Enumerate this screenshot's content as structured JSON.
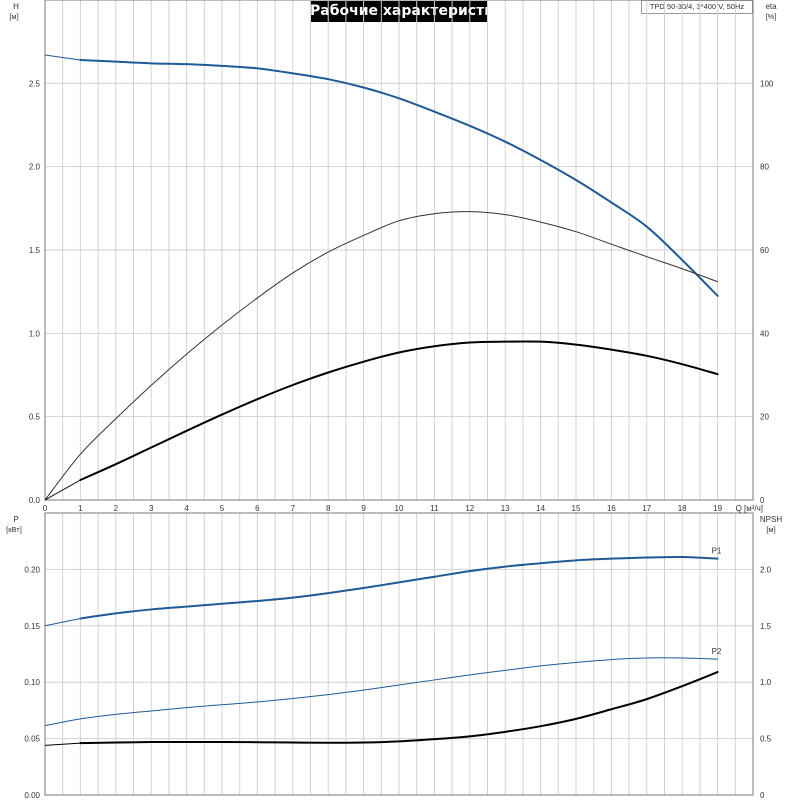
{
  "header": {
    "title": "Рабочие характеристики",
    "model": "TPD 50-30/4, 3*400 V, 50Hz"
  },
  "chart_data": [
    {
      "type": "line",
      "panel": "top",
      "left_axis": {
        "name": "H",
        "unit": "[м]",
        "range": [
          0,
          3.0
        ],
        "ticks": [
          0.0,
          0.5,
          1.0,
          1.5,
          2.0,
          2.5
        ],
        "tick_labels": [
          "0.0",
          "0.5",
          "1.0",
          "1.5",
          "2.0",
          "2.5"
        ]
      },
      "right_axis": {
        "name": "eta",
        "unit": "[%]",
        "range": [
          0,
          120
        ],
        "ticks": [
          0,
          20,
          40,
          60,
          80,
          100
        ],
        "tick_labels": [
          "0",
          "20",
          "40",
          "60",
          "80",
          "100"
        ]
      },
      "x_axis": {
        "name": "Q",
        "unit": "[м³/ч]",
        "range": [
          0,
          20
        ],
        "ticks": [
          0,
          1,
          2,
          3,
          4,
          5,
          6,
          7,
          8,
          9,
          10,
          11,
          12,
          13,
          14,
          15,
          16,
          17,
          18,
          19
        ],
        "tick_labels": [
          "0",
          "1",
          "2",
          "3",
          "4",
          "5",
          "6",
          "7",
          "8",
          "9",
          "10",
          "11",
          "12",
          "13",
          "14",
          "15",
          "16",
          "17",
          "18",
          "19"
        ]
      },
      "grid": true,
      "series": [
        {
          "id": "H",
          "axis": "left",
          "color": "#1f5a96",
          "width": 2.0,
          "thin": {
            "x": [
              0,
              1
            ],
            "y": [
              2.67,
              2.64
            ]
          },
          "x": [
            1,
            2,
            3,
            4,
            5,
            6,
            7,
            8,
            9,
            10,
            11,
            12,
            13,
            14,
            15,
            16,
            17,
            18,
            19
          ],
          "y": [
            2.64,
            2.63,
            2.62,
            2.615,
            2.605,
            2.59,
            2.56,
            2.525,
            2.475,
            2.41,
            2.33,
            2.245,
            2.15,
            2.04,
            1.92,
            1.785,
            1.64,
            1.44,
            1.225
          ]
        },
        {
          "id": "eta-outer",
          "axis": "right",
          "color": "#333333",
          "width": 1.0,
          "x": [
            0,
            1,
            2,
            3,
            4,
            5,
            6,
            7,
            8,
            9,
            10,
            11,
            12,
            13,
            14,
            15,
            16,
            17,
            18,
            19
          ],
          "y": [
            0,
            11,
            19.5,
            27.5,
            35,
            42,
            48.5,
            54.5,
            59.5,
            63.5,
            67,
            68.7,
            69.2,
            68.5,
            66.7,
            64.4,
            61.4,
            58.4,
            55.5,
            52.4
          ]
        },
        {
          "id": "eta",
          "axis": "right",
          "color": "#000000",
          "width": 2.0,
          "thin": {
            "x": [
              0,
              1
            ],
            "y": [
              0,
              4.8
            ]
          },
          "x": [
            1,
            2,
            3,
            4,
            5,
            6,
            7,
            8,
            9,
            10,
            11,
            12,
            13,
            14,
            15,
            16,
            17,
            18,
            19
          ],
          "y": [
            4.8,
            8.6,
            12.6,
            16.6,
            20.5,
            24.2,
            27.6,
            30.6,
            33.2,
            35.4,
            36.9,
            37.8,
            38.0,
            38.0,
            37.3,
            36.1,
            34.6,
            32.6,
            30.2
          ]
        }
      ]
    },
    {
      "type": "line",
      "panel": "bottom",
      "left_axis": {
        "name": "P",
        "unit": "[кВт]",
        "range": [
          0,
          0.25
        ],
        "ticks": [
          0.0,
          0.05,
          0.1,
          0.15,
          0.2
        ],
        "tick_labels": [
          "0.00",
          "0.05",
          "0.10",
          "0.15",
          "0.20"
        ]
      },
      "right_axis": {
        "name": "NPSH",
        "unit": "[м]",
        "range": [
          0,
          2.5
        ],
        "ticks": [
          0,
          0.5,
          1.0,
          1.5,
          2.0
        ],
        "tick_labels": [
          "0",
          "0.5",
          "1.0",
          "1.5",
          "2.0"
        ]
      },
      "x_axis": {
        "range": [
          0,
          20
        ]
      },
      "grid": true,
      "series": [
        {
          "id": "P1",
          "name": "P1",
          "axis": "left",
          "color": "#1f5a96",
          "width": 2.0,
          "thin": {
            "x": [
              0,
              1
            ],
            "y": [
              0.15,
              0.1565
            ]
          },
          "x": [
            1,
            2,
            3,
            4,
            5,
            6,
            7,
            8,
            9,
            10,
            11,
            12,
            13,
            14,
            15,
            16,
            17,
            18,
            19
          ],
          "y": [
            0.1565,
            0.161,
            0.1645,
            0.167,
            0.1695,
            0.172,
            0.175,
            0.179,
            0.1835,
            0.1885,
            0.1935,
            0.1985,
            0.2025,
            0.2055,
            0.208,
            0.2095,
            0.2105,
            0.211,
            0.2095
          ]
        },
        {
          "id": "P2",
          "name": "P2",
          "axis": "left",
          "color": "#1f5a96",
          "width": 1.0,
          "x": [
            0,
            1,
            2,
            3,
            4,
            5,
            6,
            7,
            8,
            9,
            10,
            11,
            12,
            13,
            14,
            15,
            16,
            17,
            18,
            19
          ],
          "y": [
            0.0615,
            0.0675,
            0.0715,
            0.0745,
            0.0775,
            0.08,
            0.0825,
            0.0855,
            0.089,
            0.093,
            0.0975,
            0.102,
            0.1065,
            0.1105,
            0.1145,
            0.1175,
            0.12,
            0.1215,
            0.1215,
            0.1205
          ]
        },
        {
          "id": "NPSH",
          "axis": "right",
          "color": "#000000",
          "width": 2.0,
          "thin": {
            "x": [
              0,
              1
            ],
            "y": [
              0.44,
              0.46
            ]
          },
          "x": [
            1,
            2,
            3,
            4,
            5,
            6,
            7,
            8,
            9,
            10,
            11,
            12,
            13,
            14,
            15,
            16,
            17,
            18,
            19
          ],
          "y": [
            0.46,
            0.465,
            0.47,
            0.47,
            0.47,
            0.468,
            0.465,
            0.463,
            0.465,
            0.475,
            0.495,
            0.52,
            0.56,
            0.61,
            0.675,
            0.76,
            0.85,
            0.965,
            1.09
          ]
        }
      ]
    }
  ]
}
